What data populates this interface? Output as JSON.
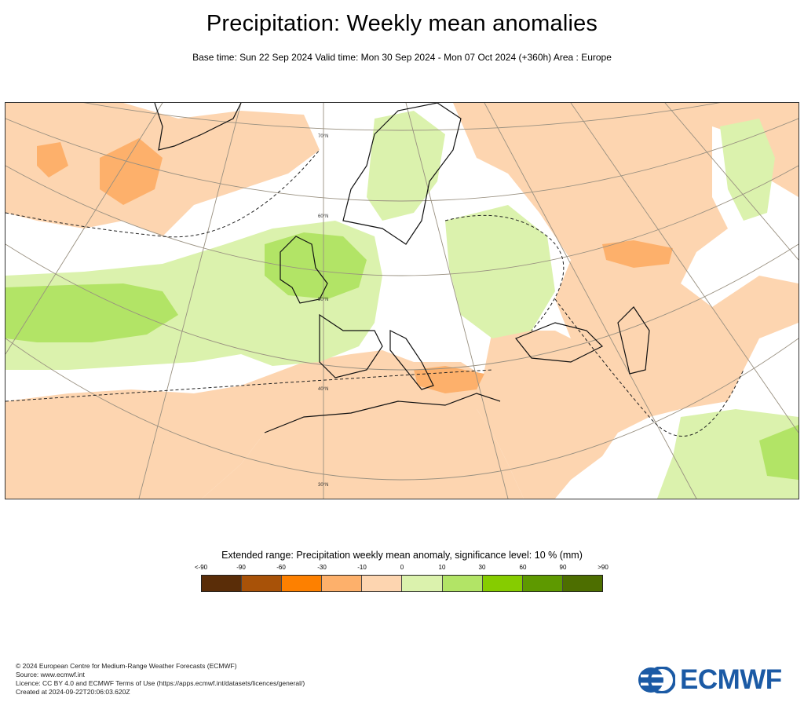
{
  "header": {
    "title": "Precipitation: Weekly mean anomalies",
    "subtitle": "Base time: Sun 22 Sep 2024 Valid time: Mon 30 Sep 2024 - Mon 07 Oct 2024 (+360h) Area : Europe"
  },
  "map": {
    "lat_labels": [
      "70°N",
      "60°N",
      "50°N",
      "40°N",
      "30°N"
    ],
    "colors": {
      "land_anomaly_dry_light": "#fdd5b0",
      "anomaly_dry_medium": "#fdb06b",
      "anomaly_wet_light": "#dbf2ad",
      "anomaly_wet_medium": "#b2e466",
      "coastline": "#111111",
      "graticule": "#999080"
    }
  },
  "legend": {
    "title": "Extended range: Precipitation weekly mean anomaly, significance level: 10 % (mm)",
    "labels": [
      "<-90",
      "-90",
      "-60",
      "-30",
      "-10",
      "0",
      "10",
      "30",
      "60",
      "90",
      ">90"
    ],
    "swatches": [
      "#5a2d08",
      "#a85208",
      "#fd8000",
      "#fdb06b",
      "#fdd5b0",
      "#dbf2ad",
      "#b2e466",
      "#86cc00",
      "#5e9900",
      "#4d6e00"
    ]
  },
  "footer": {
    "lines": [
      "© 2024 European Centre for Medium-Range Weather Forecasts (ECMWF)",
      "Source: www.ecmwf.int",
      "Licence: CC BY 4.0 and ECMWF Terms of Use (https://apps.ecmwf.int/datasets/licences/general/)",
      "Created at 2024-09-22T20:06:03.620Z"
    ]
  },
  "logo": {
    "text": "ECMWF",
    "color": "#1b5aa5"
  }
}
